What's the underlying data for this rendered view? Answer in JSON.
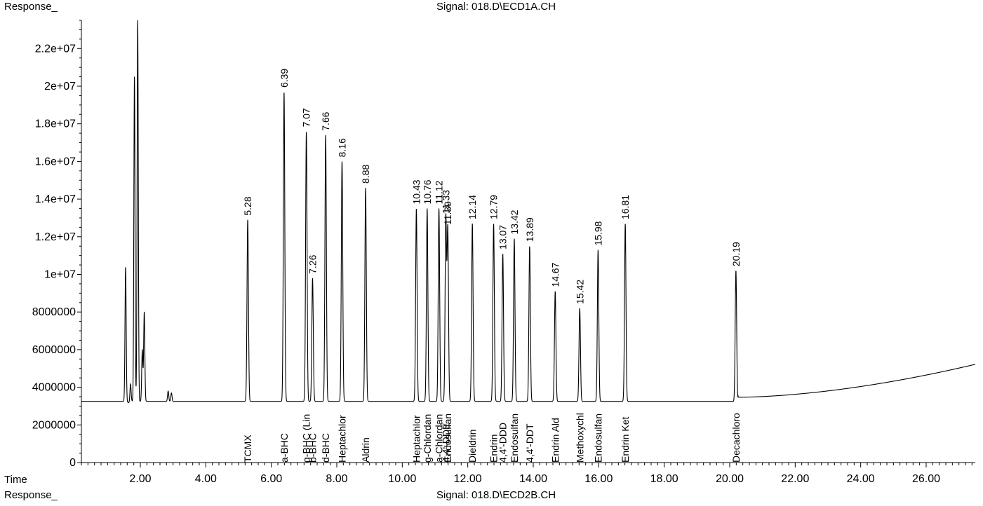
{
  "header": {
    "response_label_top": "Response_",
    "signal_top": "Signal: 018.D\\ECD1A.CH",
    "time_label": "Time",
    "response_label_bottom": "Response_",
    "signal_bottom": "Signal: 018.D\\ECD2B.CH"
  },
  "colors": {
    "trace": "#000000",
    "axis": "#000000",
    "background": "#ffffff"
  },
  "chart_data": {
    "type": "line",
    "title": "Signal: 018.D\\ECD1A.CH",
    "xlabel": "Time",
    "ylabel": "Response_",
    "xlim": [
      0.2,
      27.5
    ],
    "ylim": [
      0,
      23500000.0
    ],
    "baseline": 3250000,
    "grid": false,
    "x_ticks": [
      {
        "value": 2,
        "label": "2.00"
      },
      {
        "value": 4,
        "label": "4.00"
      },
      {
        "value": 6,
        "label": "6.00"
      },
      {
        "value": 8,
        "label": "8.00"
      },
      {
        "value": 10,
        "label": "10.00"
      },
      {
        "value": 12,
        "label": "12.00"
      },
      {
        "value": 14,
        "label": "14.00"
      },
      {
        "value": 16,
        "label": "16.00"
      },
      {
        "value": 18,
        "label": "18.00"
      },
      {
        "value": 20,
        "label": "20.00"
      },
      {
        "value": 22,
        "label": "22.00"
      },
      {
        "value": 24,
        "label": "24.00"
      },
      {
        "value": 26,
        "label": "26.00"
      }
    ],
    "y_ticks": [
      {
        "value": 0,
        "label": "0"
      },
      {
        "value": 2000000,
        "label": "2000000"
      },
      {
        "value": 4000000,
        "label": "4000000"
      },
      {
        "value": 6000000,
        "label": "6000000"
      },
      {
        "value": 8000000,
        "label": "8000000"
      },
      {
        "value": 10000000,
        "label": "1e+07"
      },
      {
        "value": 12000000,
        "label": "1.2e+07"
      },
      {
        "value": 14000000,
        "label": "1.4e+07"
      },
      {
        "value": 16000000,
        "label": "1.6e+07"
      },
      {
        "value": 18000000,
        "label": "1.8e+07"
      },
      {
        "value": 20000000,
        "label": "2e+07"
      },
      {
        "value": 22000000,
        "label": "2.2e+07"
      }
    ],
    "solvent_peaks": [
      {
        "rt": 1.55,
        "height": 10400000
      },
      {
        "rt": 1.7,
        "height": 4200000
      },
      {
        "rt": 1.82,
        "height": 20500000
      },
      {
        "rt": 1.92,
        "height": 23500000
      },
      {
        "rt": 2.06,
        "height": 6000000
      },
      {
        "rt": 2.12,
        "height": 8000000
      },
      {
        "rt": 2.85,
        "height": 3800000
      },
      {
        "rt": 2.95,
        "height": 3700000
      }
    ],
    "peaks": [
      {
        "rt": 5.28,
        "rt_label": "5.28",
        "height": 12900000,
        "compound": "TCMX"
      },
      {
        "rt": 6.39,
        "rt_label": "6.39",
        "height": 19700000,
        "compound": "a-BHC"
      },
      {
        "rt": 7.07,
        "rt_label": "7.07",
        "height": 17600000,
        "compound": "g-BHC (Lin"
      },
      {
        "rt": 7.26,
        "rt_label": "7.26",
        "height": 9800000,
        "compound": "b-BHC"
      },
      {
        "rt": 7.66,
        "rt_label": "7.66",
        "height": 17400000,
        "compound": "d-BHC"
      },
      {
        "rt": 8.16,
        "rt_label": "8.16",
        "height": 16000000,
        "compound": "Heptachlor"
      },
      {
        "rt": 8.88,
        "rt_label": "8.88",
        "height": 14600000,
        "compound": "Aldrin"
      },
      {
        "rt": 10.43,
        "rt_label": "10.43",
        "height": 13500000,
        "compound": "Heptachlor"
      },
      {
        "rt": 10.76,
        "rt_label": "10.76",
        "height": 13500000,
        "compound": "g-Chlordan"
      },
      {
        "rt": 11.12,
        "rt_label": "11.12",
        "height": 13500000,
        "compound": "a-Chlordan"
      },
      {
        "rt": 11.33,
        "rt_label": "11.33",
        "height": 13000000,
        "compound": "4,4'-DDE"
      },
      {
        "rt": 11.39,
        "rt_label": "11.39",
        "height": 12400000,
        "compound": "Endosulfan"
      },
      {
        "rt": 12.14,
        "rt_label": "12.14",
        "height": 12700000,
        "compound": "Dieldrin"
      },
      {
        "rt": 12.79,
        "rt_label": "12.79",
        "height": 12700000,
        "compound": "Endrin"
      },
      {
        "rt": 13.07,
        "rt_label": "13.07",
        "height": 11100000,
        "compound": "4,4'-DDD"
      },
      {
        "rt": 13.42,
        "rt_label": "13.42",
        "height": 11900000,
        "compound": "Endosulfan"
      },
      {
        "rt": 13.89,
        "rt_label": "13.89",
        "height": 11500000,
        "compound": "4,4'-DDT"
      },
      {
        "rt": 14.67,
        "rt_label": "14.67",
        "height": 9100000,
        "compound": "Endrin Ald"
      },
      {
        "rt": 15.42,
        "rt_label": "15.42",
        "height": 8200000,
        "compound": "Methoxychl"
      },
      {
        "rt": 15.98,
        "rt_label": "15.98",
        "height": 11300000,
        "compound": "Endosulfan"
      },
      {
        "rt": 16.81,
        "rt_label": "16.81",
        "height": 12700000,
        "compound": "Endrin Ket"
      },
      {
        "rt": 20.19,
        "rt_label": "20.19",
        "height": 10200000,
        "compound": "Decachloro"
      }
    ]
  }
}
